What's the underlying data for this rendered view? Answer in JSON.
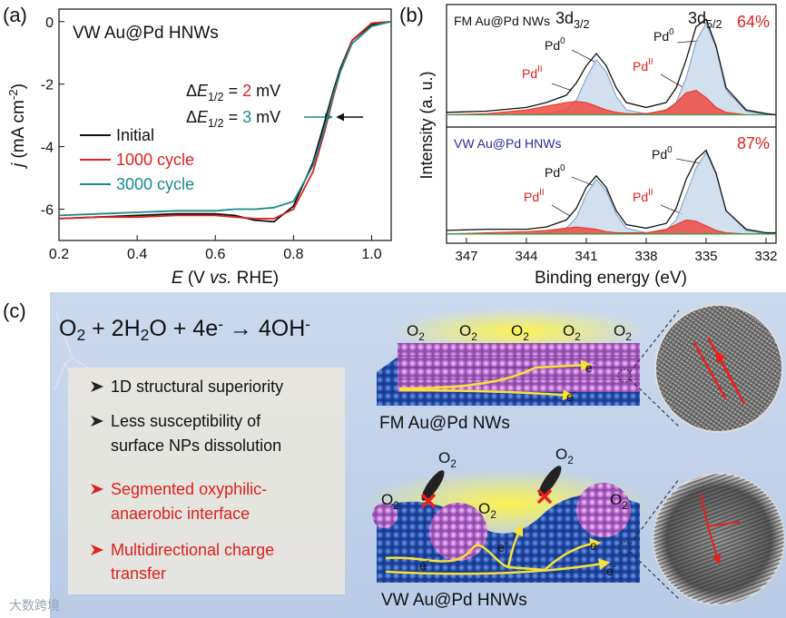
{
  "panel_labels": [
    "(a)",
    "(b)",
    "(c)"
  ],
  "chart_data": [
    {
      "type": "line",
      "annotation": "VW Au@Pd HNWs",
      "delta_annotations": [
        [
          {
            "text": "Δ"
          },
          {
            "italic": "E"
          },
          {
            "sub": "1/2"
          },
          {
            "text": " = "
          },
          {
            "value": 2,
            "color": "#e0201b"
          },
          {
            "text": " mV"
          }
        ],
        [
          {
            "text": "Δ"
          },
          {
            "italic": "E"
          },
          {
            "sub": "1/2"
          },
          {
            "text": " = "
          },
          {
            "value": 3,
            "color": "#1a8a8a"
          },
          {
            "text": " mV"
          }
        ]
      ],
      "xlabel": [
        {
          "italic": "E"
        },
        {
          "text": " (V "
        },
        {
          "italic": "vs."
        },
        {
          "text": " RHE)"
        }
      ],
      "ylabel": [
        {
          "italic": "j"
        },
        {
          "text": " (mA cm"
        },
        {
          "sup": "-2"
        },
        {
          "text": ")"
        }
      ],
      "x": [
        0.2,
        0.3,
        0.4,
        0.5,
        0.6,
        0.65,
        0.7,
        0.75,
        0.8,
        0.85,
        0.88,
        0.9,
        0.92,
        0.95,
        1.0,
        1.05
      ],
      "series": [
        {
          "name": "Initial",
          "color": "#111111",
          "values": [
            -6.3,
            -6.25,
            -6.2,
            -6.15,
            -6.15,
            -6.2,
            -6.35,
            -6.4,
            -5.9,
            -4.5,
            -3.2,
            -2.3,
            -1.5,
            -0.6,
            -0.1,
            0
          ]
        },
        {
          "name": "1000 cycle",
          "color": "#e0201b",
          "values": [
            -6.3,
            -6.25,
            -6.25,
            -6.2,
            -6.2,
            -6.25,
            -6.3,
            -6.3,
            -6.0,
            -4.8,
            -3.5,
            -2.5,
            -1.6,
            -0.6,
            -0.05,
            0
          ]
        },
        {
          "name": "3000 cycle",
          "color": "#1a8a8a",
          "values": [
            -6.2,
            -6.15,
            -6.1,
            -6.05,
            -6.05,
            -6.0,
            -6.0,
            -5.95,
            -5.75,
            -4.6,
            -3.4,
            -2.4,
            -1.6,
            -0.7,
            -0.15,
            0
          ]
        }
      ],
      "xlim": [
        0.2,
        1.05
      ],
      "ylim": [
        -7,
        0.4
      ],
      "xticks": [
        0.2,
        0.4,
        0.6,
        0.8,
        {
          "value": 1,
          "label": "1.0"
        }
      ],
      "yticks": [
        0,
        -2,
        -4,
        -6
      ],
      "legend": "lower left"
    },
    {
      "type": "xps",
      "xlabel": "Binding energy (eV)",
      "ylabel": "Intensity (a. u.)",
      "xlim": [
        348,
        331.5
      ],
      "xticks": [
        347,
        344,
        341,
        338,
        335,
        332
      ],
      "x": [
        348,
        346,
        344,
        343,
        342,
        341.5,
        341,
        340.5,
        340,
        339.5,
        339,
        338,
        337,
        336.5,
        336,
        335.5,
        335,
        334.5,
        334,
        333,
        332,
        331.5
      ],
      "panels": [
        {
          "title": "FM Au@Pd NWs",
          "title_color": "#111111",
          "percent": "64%",
          "doublet": [
            [
              {
                "text": "3d"
              },
              {
                "sub": "3/2"
              }
            ],
            [
              {
                "text": "3d"
              },
              {
                "sub": "5/2"
              }
            ]
          ],
          "pd0": [
            {
              "text": "Pd"
            },
            {
              "sup": "0"
            }
          ],
          "pd2": [
            {
              "text": "Pd"
            },
            {
              "sup": "II"
            }
          ],
          "ylim": [
            0,
            100
          ],
          "series": [
            {
              "color": "#7a9cc4",
              "fill": "#c9d9ec",
              "values": [
                10,
                10,
                10,
                11,
                14,
                22,
                40,
                55,
                45,
                25,
                14,
                11,
                13,
                20,
                40,
                70,
                85,
                65,
                30,
                13,
                10,
                10
              ]
            },
            {
              "color": "#e8302a",
              "fill": "#ee4a40",
              "values": [
                10,
                11,
                14,
                17,
                20,
                21,
                20,
                17,
                14,
                12,
                11,
                11,
                14,
                20,
                28,
                30,
                24,
                16,
                12,
                10,
                10,
                10
              ]
            },
            {
              "color": "#3aa04a",
              "values": [
                10,
                10,
                10,
                10,
                10,
                10,
                10,
                10,
                10,
                10,
                10,
                10,
                10,
                10,
                10,
                10,
                10,
                10,
                10,
                10,
                10,
                10
              ]
            },
            {
              "color": "#111111",
              "values": [
                12,
                13,
                16,
                20,
                26,
                36,
                50,
                60,
                50,
                32,
                20,
                16,
                20,
                32,
                55,
                82,
                88,
                66,
                32,
                14,
                11,
                10
              ]
            }
          ]
        },
        {
          "title": "VW Au@Pd HNWs",
          "title_color": "#2a2aa0",
          "percent": "87%",
          "pd0": [
            {
              "text": "Pd"
            },
            {
              "sup": "0"
            }
          ],
          "pd2": [
            {
              "text": "Pd"
            },
            {
              "sup": "II"
            }
          ],
          "ylim": [
            0,
            100
          ],
          "series": [
            {
              "color": "#7a9cc4",
              "fill": "#c9d9ec",
              "values": [
                8,
                8,
                8,
                9,
                13,
                22,
                42,
                55,
                45,
                25,
                13,
                9,
                11,
                20,
                42,
                65,
                78,
                60,
                28,
                11,
                8,
                8
              ]
            },
            {
              "color": "#e8302a",
              "fill": "#ee4a40",
              "values": [
                8,
                9,
                10,
                11,
                13,
                14,
                13,
                12,
                10,
                9,
                9,
                9,
                12,
                16,
                20,
                19,
                15,
                11,
                9,
                8,
                8,
                8
              ]
            },
            {
              "color": "#3aa04a",
              "values": [
                8,
                8,
                8,
                8,
                8,
                8,
                8,
                8,
                8,
                8,
                8,
                8,
                8,
                8,
                8,
                8,
                8,
                8,
                8,
                8,
                8,
                8
              ]
            },
            {
              "color": "#111111",
              "values": [
                11,
                12,
                12,
                14,
                20,
                30,
                48,
                58,
                48,
                28,
                16,
                13,
                17,
                30,
                55,
                72,
                80,
                60,
                28,
                12,
                9,
                9
              ]
            }
          ]
        }
      ]
    }
  ],
  "scheme": {
    "equation": [
      {
        "text": "O"
      },
      {
        "sub": "2"
      },
      {
        "text": " + 2H"
      },
      {
        "sub": "2"
      },
      {
        "text": "O + 4e"
      },
      {
        "sup": "-"
      },
      {
        "text": " → 4OH"
      },
      {
        "sup": "-"
      }
    ],
    "bullets": [
      {
        "lines": [
          "1D structural superiority"
        ],
        "color": "#111111"
      },
      {
        "lines": [
          "Less susceptibility of",
          "surface NPs dissolution"
        ],
        "color": "#111111"
      },
      {
        "lines": [
          "Segmented oxyphilic-",
          "anaerobic interface"
        ],
        "color": "#e0201b"
      },
      {
        "lines": [
          "Multidirectional charge",
          "transfer"
        ],
        "color": "#e0201b"
      }
    ],
    "fm_label": "FM Au@Pd NWs",
    "vw_label": "VW Au@Pd HNWs",
    "o2": [
      {
        "text": "O"
      },
      {
        "sub": "2"
      }
    ],
    "electron": [
      {
        "text": "e"
      },
      {
        "sup": "-"
      }
    ],
    "watermark": "大数跨境"
  }
}
